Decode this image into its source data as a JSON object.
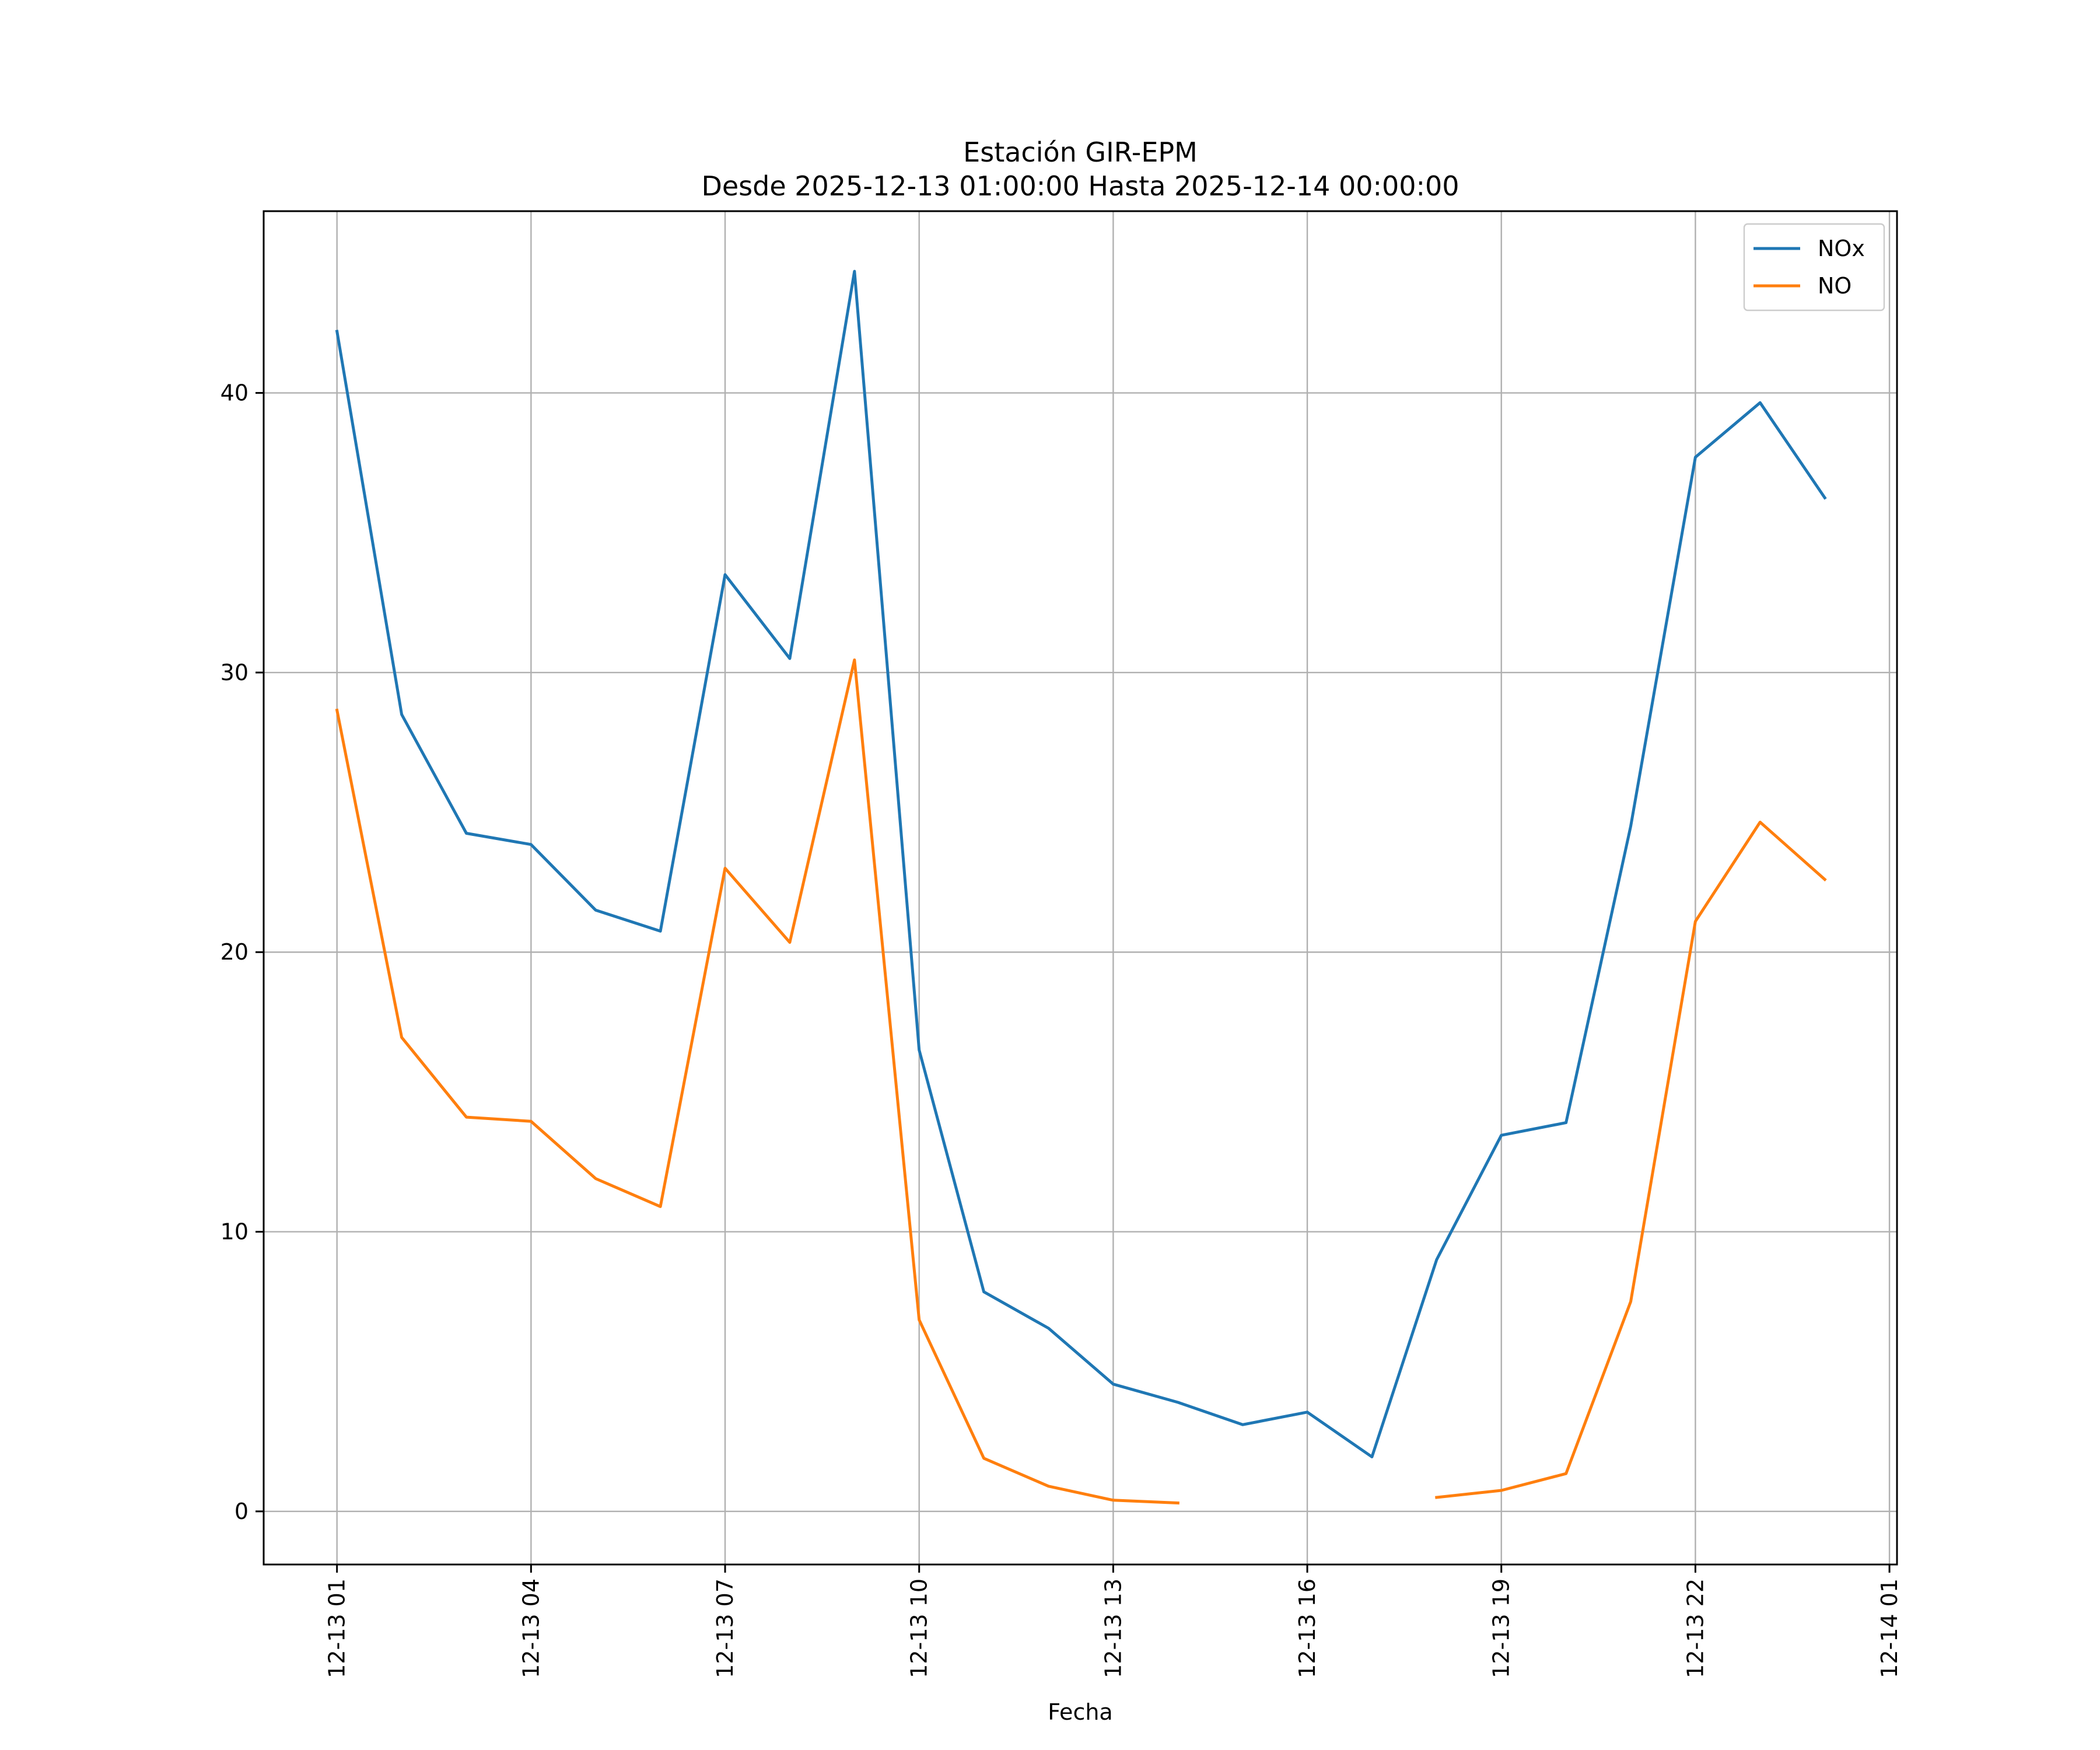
{
  "chart_data": {
    "type": "line",
    "title": "Estación GIR-EPM",
    "subtitle": "Desde 2025-12-13 01:00:00 Hasta 2025-12-14 00:00:00",
    "xlabel": "Fecha",
    "ylabel": "",
    "x": [
      "2025-12-13 01:00",
      "2025-12-13 02:00",
      "2025-12-13 03:00",
      "2025-12-13 04:00",
      "2025-12-13 05:00",
      "2025-12-13 06:00",
      "2025-12-13 07:00",
      "2025-12-13 08:00",
      "2025-12-13 09:00",
      "2025-12-13 10:00",
      "2025-12-13 11:00",
      "2025-12-13 12:00",
      "2025-12-13 13:00",
      "2025-12-13 14:00",
      "2025-12-13 15:00",
      "2025-12-13 16:00",
      "2025-12-13 17:00",
      "2025-12-13 18:00",
      "2025-12-13 19:00",
      "2025-12-13 20:00",
      "2025-12-13 21:00",
      "2025-12-13 22:00",
      "2025-12-13 23:00",
      "2025-12-14 00:00"
    ],
    "series": [
      {
        "name": "NOx",
        "color": "#1f77b4",
        "values": [
          42.2,
          28.5,
          24.25,
          23.85,
          21.5,
          20.75,
          33.5,
          30.5,
          44.35,
          16.5,
          7.85,
          6.55,
          4.55,
          3.9,
          3.1,
          3.55,
          1.95,
          9.0,
          13.45,
          13.9,
          24.5,
          37.7,
          39.65,
          36.25
        ]
      },
      {
        "name": "NO",
        "color": "#ff7f0e",
        "values": [
          28.65,
          16.95,
          14.1,
          13.95,
          11.9,
          10.9,
          23.0,
          20.35,
          30.45,
          6.85,
          1.9,
          0.9,
          0.4,
          0.3,
          null,
          null,
          null,
          0.5,
          0.75,
          1.35,
          7.5,
          21.1,
          24.65,
          22.6
        ]
      }
    ],
    "x_ticks": [
      "12-13 01",
      "12-13 04",
      "12-13 07",
      "12-13 10",
      "12-13 13",
      "12-13 16",
      "12-13 19",
      "12-13 22",
      "12-14 01"
    ],
    "y_ticks": [
      "0",
      "10",
      "20",
      "30",
      "40"
    ],
    "ylim": [
      -1.9,
      46.5
    ],
    "xlim": [
      "2025-12-12 23:52",
      "2025-12-14 01:07"
    ],
    "grid": true,
    "legend_position": "top-right"
  }
}
